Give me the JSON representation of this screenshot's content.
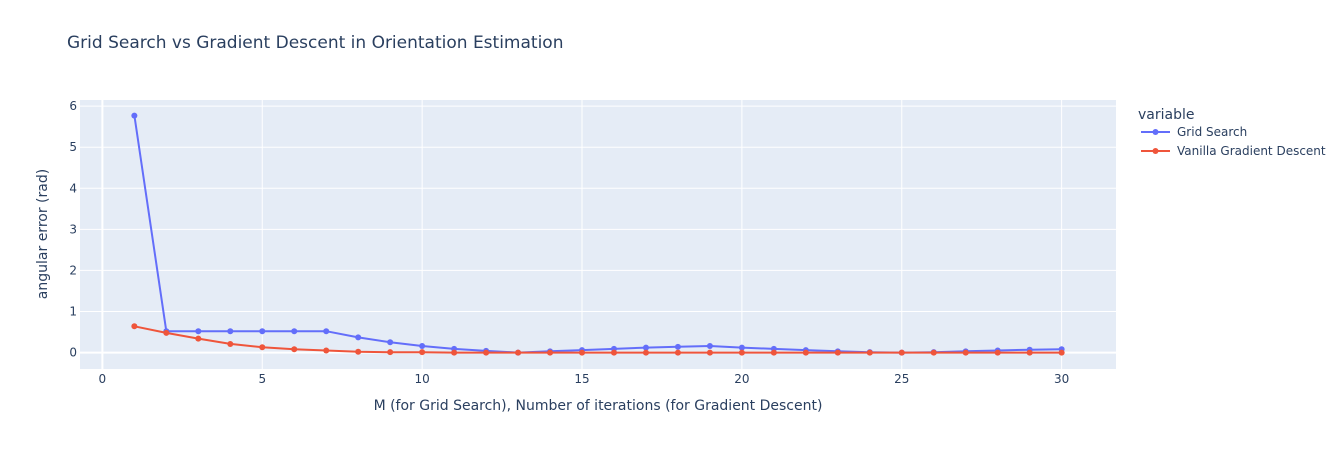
{
  "chart_data": {
    "type": "line",
    "title": "Grid Search vs Gradient Descent in Orientation Estimation",
    "xlabel": "M (for Grid Search), Number of iterations (for Gradient Descent)",
    "ylabel": "angular error (rad)",
    "xlim": [
      -0.7,
      31.7
    ],
    "ylim": [
      -0.4,
      6.15
    ],
    "xticks": [
      0,
      5,
      10,
      15,
      20,
      25,
      30
    ],
    "yticks": [
      0,
      1,
      2,
      3,
      4,
      5,
      6
    ],
    "grid": true,
    "legend": {
      "title": "variable",
      "placement": "top-right"
    },
    "x": [
      1,
      2,
      3,
      4,
      5,
      6,
      7,
      8,
      9,
      10,
      11,
      12,
      13,
      14,
      15,
      16,
      17,
      18,
      19,
      20,
      21,
      22,
      23,
      24,
      25,
      26,
      27,
      28,
      29,
      30
    ],
    "series": [
      {
        "name": "Grid Search",
        "color": "#636efa",
        "values": [
          5.77,
          0.52,
          0.52,
          0.52,
          0.52,
          0.52,
          0.52,
          0.37,
          0.25,
          0.16,
          0.09,
          0.04,
          0.0,
          0.03,
          0.06,
          0.09,
          0.12,
          0.14,
          0.16,
          0.12,
          0.09,
          0.06,
          0.03,
          0.01,
          0.0,
          0.01,
          0.03,
          0.05,
          0.07,
          0.08
        ]
      },
      {
        "name": "Vanilla Gradient Descent",
        "color": "#ef553b",
        "values": [
          0.64,
          0.48,
          0.34,
          0.21,
          0.13,
          0.08,
          0.05,
          0.02,
          0.01,
          0.01,
          0.0,
          0.0,
          0.0,
          0.0,
          0.0,
          0.0,
          0.0,
          0.0,
          0.0,
          0.0,
          0.0,
          0.0,
          0.0,
          0.0,
          0.0,
          0.0,
          0.0,
          0.0,
          0.0,
          0.0
        ]
      }
    ]
  },
  "colors": {
    "plot_bg": "#e5ecf6",
    "grid": "#ffffff",
    "text": "#2a3f5f"
  }
}
